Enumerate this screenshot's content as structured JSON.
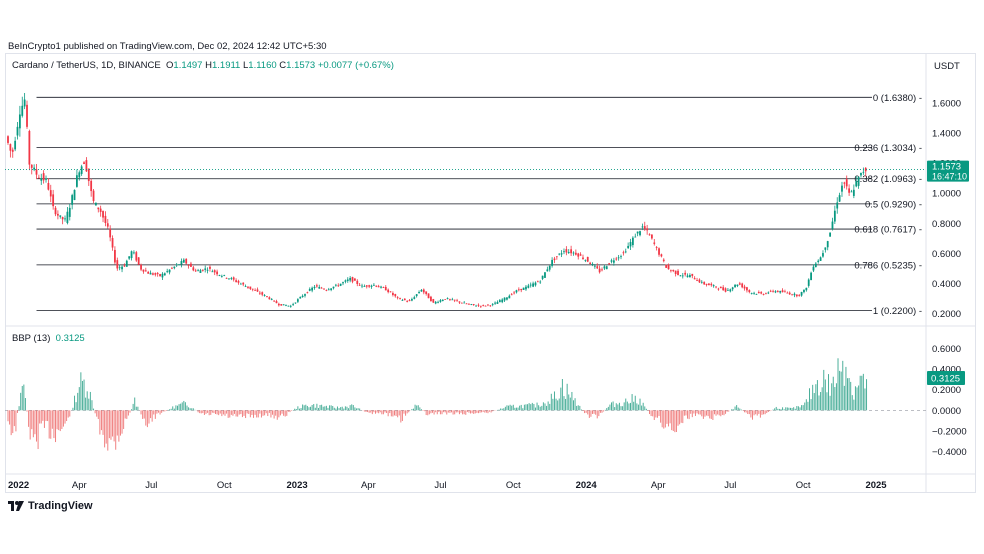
{
  "header": {
    "publisher": "BeInCrypto1 published on TradingView.com, Dec 02, 2024 12:42 UTC+5:30"
  },
  "legend": {
    "symbol": "Cardano / TetherUS, 1D, BINANCE",
    "o_label": "O",
    "o": "1.1497",
    "h_label": "H",
    "h": "1.1911",
    "l_label": "L",
    "l": "1.1160",
    "c_label": "C",
    "c": "1.1573",
    "change": "+0.0077 (+0.67%)"
  },
  "currency": "USDT",
  "indicator": {
    "name": "BBP (13)",
    "value": "0.3125"
  },
  "footer": {
    "logo_text": "TradingView"
  },
  "colors": {
    "up": "#089981",
    "down": "#f23645",
    "fib_line": "#131722",
    "hist_up": "#4caf9a",
    "hist_down": "#f08080"
  },
  "chart_data": {
    "type": "candlestick",
    "price_axis": {
      "ticks": [
        1.6,
        1.4,
        1.2,
        1.0,
        0.8,
        0.6,
        0.4,
        0.2
      ],
      "tick_labels": [
        "1.6000",
        "1.4000",
        "1.2000",
        "1.0000",
        "0.8000",
        "0.6000",
        "0.4000",
        "0.2000"
      ],
      "ylim": [
        0.17,
        1.66
      ]
    },
    "indicator_axis": {
      "ticks": [
        0.6,
        0.4,
        0.2,
        0.0,
        -0.2,
        -0.4
      ],
      "tick_labels": [
        "0.6000",
        "0.4000",
        "0.2000",
        "0.0000",
        "−0.2000",
        "−0.4000"
      ],
      "ylim": [
        -0.5,
        0.68
      ]
    },
    "x_ticks": [
      {
        "label": "2022",
        "day": 0,
        "bold": true
      },
      {
        "label": "Apr",
        "day": 90
      },
      {
        "label": "Jul",
        "day": 181
      },
      {
        "label": "Oct",
        "day": 273
      },
      {
        "label": "2023",
        "day": 365,
        "bold": true
      },
      {
        "label": "Apr",
        "day": 455
      },
      {
        "label": "Jul",
        "day": 546
      },
      {
        "label": "Oct",
        "day": 638
      },
      {
        "label": "2024",
        "day": 730,
        "bold": true
      },
      {
        "label": "Apr",
        "day": 821
      },
      {
        "label": "Jul",
        "day": 912
      },
      {
        "label": "Oct",
        "day": 1004
      },
      {
        "label": "2025",
        "day": 1096,
        "bold": true
      }
    ],
    "fib_levels": [
      {
        "ratio": "0",
        "price": 1.638,
        "label": "0 (1.6380)"
      },
      {
        "ratio": "0.236",
        "price": 1.3034,
        "label": "0.236 (1.3034)"
      },
      {
        "ratio": "0.382",
        "price": 1.0963,
        "label": "0.382 (1.0963)"
      },
      {
        "ratio": "0.5",
        "price": 0.929,
        "label": "0.5 (0.9290)"
      },
      {
        "ratio": "0.618",
        "price": 0.7617,
        "label": "0.618 (0.7617)"
      },
      {
        "ratio": "0.786",
        "price": 0.5235,
        "label": "0.786 (0.5235)"
      },
      {
        "ratio": "1",
        "price": 0.22,
        "label": "1 (0.2200)"
      }
    ],
    "last_price": {
      "value": "1.1573",
      "countdown": "16:47:10"
    },
    "last_indicator": "0.3125",
    "price_path": [
      {
        "day": 0,
        "price": 1.38
      },
      {
        "day": 8,
        "price": 1.25
      },
      {
        "day": 18,
        "price": 1.55
      },
      {
        "day": 24,
        "price": 1.62
      },
      {
        "day": 30,
        "price": 1.2
      },
      {
        "day": 40,
        "price": 1.12
      },
      {
        "day": 52,
        "price": 1.08
      },
      {
        "day": 60,
        "price": 0.9
      },
      {
        "day": 68,
        "price": 0.84
      },
      {
        "day": 75,
        "price": 0.82
      },
      {
        "day": 82,
        "price": 0.93
      },
      {
        "day": 92,
        "price": 1.15
      },
      {
        "day": 100,
        "price": 1.22
      },
      {
        "day": 110,
        "price": 0.95
      },
      {
        "day": 120,
        "price": 0.88
      },
      {
        "day": 130,
        "price": 0.75
      },
      {
        "day": 140,
        "price": 0.5
      },
      {
        "day": 150,
        "price": 0.52
      },
      {
        "day": 160,
        "price": 0.62
      },
      {
        "day": 170,
        "price": 0.5
      },
      {
        "day": 180,
        "price": 0.47
      },
      {
        "day": 195,
        "price": 0.45
      },
      {
        "day": 210,
        "price": 0.5
      },
      {
        "day": 225,
        "price": 0.55
      },
      {
        "day": 240,
        "price": 0.48
      },
      {
        "day": 255,
        "price": 0.5
      },
      {
        "day": 270,
        "price": 0.46
      },
      {
        "day": 285,
        "price": 0.43
      },
      {
        "day": 300,
        "price": 0.39
      },
      {
        "day": 315,
        "price": 0.35
      },
      {
        "day": 330,
        "price": 0.31
      },
      {
        "day": 345,
        "price": 0.26
      },
      {
        "day": 360,
        "price": 0.25
      },
      {
        "day": 375,
        "price": 0.32
      },
      {
        "day": 390,
        "price": 0.38
      },
      {
        "day": 405,
        "price": 0.36
      },
      {
        "day": 420,
        "price": 0.39
      },
      {
        "day": 435,
        "price": 0.43
      },
      {
        "day": 450,
        "price": 0.38
      },
      {
        "day": 465,
        "price": 0.39
      },
      {
        "day": 480,
        "price": 0.36
      },
      {
        "day": 495,
        "price": 0.3
      },
      {
        "day": 510,
        "price": 0.28
      },
      {
        "day": 525,
        "price": 0.36
      },
      {
        "day": 540,
        "price": 0.27
      },
      {
        "day": 555,
        "price": 0.3
      },
      {
        "day": 570,
        "price": 0.28
      },
      {
        "day": 585,
        "price": 0.26
      },
      {
        "day": 600,
        "price": 0.25
      },
      {
        "day": 615,
        "price": 0.26
      },
      {
        "day": 630,
        "price": 0.3
      },
      {
        "day": 645,
        "price": 0.35
      },
      {
        "day": 660,
        "price": 0.38
      },
      {
        "day": 675,
        "price": 0.42
      },
      {
        "day": 690,
        "price": 0.55
      },
      {
        "day": 705,
        "price": 0.62
      },
      {
        "day": 720,
        "price": 0.6
      },
      {
        "day": 735,
        "price": 0.55
      },
      {
        "day": 750,
        "price": 0.48
      },
      {
        "day": 765,
        "price": 0.55
      },
      {
        "day": 780,
        "price": 0.6
      },
      {
        "day": 795,
        "price": 0.72
      },
      {
        "day": 805,
        "price": 0.78
      },
      {
        "day": 815,
        "price": 0.7
      },
      {
        "day": 825,
        "price": 0.6
      },
      {
        "day": 835,
        "price": 0.5
      },
      {
        "day": 850,
        "price": 0.46
      },
      {
        "day": 865,
        "price": 0.45
      },
      {
        "day": 880,
        "price": 0.4
      },
      {
        "day": 895,
        "price": 0.38
      },
      {
        "day": 910,
        "price": 0.35
      },
      {
        "day": 925,
        "price": 0.4
      },
      {
        "day": 940,
        "price": 0.34
      },
      {
        "day": 955,
        "price": 0.33
      },
      {
        "day": 970,
        "price": 0.35
      },
      {
        "day": 985,
        "price": 0.34
      },
      {
        "day": 1000,
        "price": 0.32
      },
      {
        "day": 1010,
        "price": 0.36
      },
      {
        "day": 1020,
        "price": 0.52
      },
      {
        "day": 1030,
        "price": 0.58
      },
      {
        "day": 1040,
        "price": 0.72
      },
      {
        "day": 1050,
        "price": 0.95
      },
      {
        "day": 1058,
        "price": 1.08
      },
      {
        "day": 1066,
        "price": 0.98
      },
      {
        "day": 1075,
        "price": 1.08
      },
      {
        "day": 1084,
        "price": 1.1573
      }
    ],
    "bbp_path": [
      {
        "day": 0,
        "value": -0.1
      },
      {
        "day": 8,
        "value": -0.3
      },
      {
        "day": 18,
        "value": 0.35
      },
      {
        "day": 30,
        "value": -0.4
      },
      {
        "day": 45,
        "value": -0.2
      },
      {
        "day": 60,
        "value": -0.25
      },
      {
        "day": 75,
        "value": -0.15
      },
      {
        "day": 90,
        "value": 0.3
      },
      {
        "day": 100,
        "value": 0.3
      },
      {
        "day": 115,
        "value": -0.2
      },
      {
        "day": 130,
        "value": -0.4
      },
      {
        "day": 145,
        "value": -0.2
      },
      {
        "day": 160,
        "value": 0.1
      },
      {
        "day": 175,
        "value": -0.15
      },
      {
        "day": 190,
        "value": -0.05
      },
      {
        "day": 210,
        "value": 0.04
      },
      {
        "day": 225,
        "value": 0.08
      },
      {
        "day": 245,
        "value": -0.05
      },
      {
        "day": 265,
        "value": -0.05
      },
      {
        "day": 285,
        "value": -0.08
      },
      {
        "day": 305,
        "value": -0.07
      },
      {
        "day": 325,
        "value": -0.05
      },
      {
        "day": 345,
        "value": -0.08
      },
      {
        "day": 365,
        "value": 0.03
      },
      {
        "day": 380,
        "value": 0.06
      },
      {
        "day": 395,
        "value": 0.05
      },
      {
        "day": 415,
        "value": 0.03
      },
      {
        "day": 435,
        "value": 0.05
      },
      {
        "day": 455,
        "value": -0.03
      },
      {
        "day": 475,
        "value": -0.03
      },
      {
        "day": 495,
        "value": -0.12
      },
      {
        "day": 515,
        "value": 0.06
      },
      {
        "day": 530,
        "value": -0.05
      },
      {
        "day": 545,
        "value": -0.03
      },
      {
        "day": 565,
        "value": -0.04
      },
      {
        "day": 590,
        "value": -0.03
      },
      {
        "day": 610,
        "value": -0.02
      },
      {
        "day": 630,
        "value": 0.04
      },
      {
        "day": 650,
        "value": 0.05
      },
      {
        "day": 670,
        "value": 0.06
      },
      {
        "day": 690,
        "value": 0.15
      },
      {
        "day": 700,
        "value": 0.28
      },
      {
        "day": 715,
        "value": 0.12
      },
      {
        "day": 730,
        "value": -0.05
      },
      {
        "day": 745,
        "value": -0.08
      },
      {
        "day": 760,
        "value": 0.06
      },
      {
        "day": 780,
        "value": 0.1
      },
      {
        "day": 795,
        "value": 0.14
      },
      {
        "day": 810,
        "value": -0.03
      },
      {
        "day": 825,
        "value": -0.15
      },
      {
        "day": 840,
        "value": -0.2
      },
      {
        "day": 855,
        "value": -0.08
      },
      {
        "day": 870,
        "value": -0.05
      },
      {
        "day": 885,
        "value": -0.08
      },
      {
        "day": 900,
        "value": -0.06
      },
      {
        "day": 920,
        "value": 0.04
      },
      {
        "day": 940,
        "value": -0.07
      },
      {
        "day": 955,
        "value": -0.05
      },
      {
        "day": 970,
        "value": 0.03
      },
      {
        "day": 990,
        "value": 0.02
      },
      {
        "day": 1005,
        "value": 0.05
      },
      {
        "day": 1020,
        "value": 0.3
      },
      {
        "day": 1030,
        "value": 0.35
      },
      {
        "day": 1040,
        "value": 0.25
      },
      {
        "day": 1050,
        "value": 0.48
      },
      {
        "day": 1058,
        "value": 0.62
      },
      {
        "day": 1066,
        "value": 0.2
      },
      {
        "day": 1075,
        "value": 0.35
      },
      {
        "day": 1084,
        "value": 0.3125
      }
    ]
  }
}
